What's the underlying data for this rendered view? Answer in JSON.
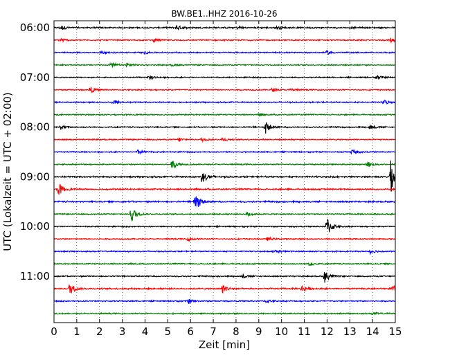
{
  "chart_data": {
    "type": "line",
    "title": "BW.BE1..HHZ 2016-10-26",
    "xlabel": "Zeit  [min]",
    "ylabel": "UTC (Lokalzeit = UTC + 02:00)",
    "xlim": [
      0,
      15
    ],
    "x_ticks": [
      "0",
      "1",
      "2",
      "3",
      "4",
      "5",
      "6",
      "7",
      "8",
      "9",
      "10",
      "11",
      "12",
      "13",
      "14",
      "15"
    ],
    "y_tick_labels": [
      "06:00",
      "07:00",
      "08:00",
      "09:00",
      "10:00",
      "11:00"
    ],
    "grid": "vertical dotted",
    "row_minutes": 15,
    "color_cycle": [
      "#000000",
      "#ff0000",
      "#0000ff",
      "#008000"
    ],
    "series": [
      {
        "start": "06:00",
        "color": "#000000",
        "noise": 0.1,
        "events": [
          {
            "t": 0.3,
            "amp": 0.35
          },
          {
            "t": 5.4,
            "amp": 0.35
          },
          {
            "t": 8.1,
            "amp": 0.2
          },
          {
            "t": 9.8,
            "amp": 0.2
          }
        ]
      },
      {
        "start": "06:15",
        "color": "#ff0000",
        "noise": 0.08,
        "events": [
          {
            "t": 0.3,
            "amp": 0.35
          },
          {
            "t": 4.4,
            "amp": 0.25
          },
          {
            "t": 14.8,
            "amp": 0.35
          }
        ]
      },
      {
        "start": "06:30",
        "color": "#0000ff",
        "noise": 0.08,
        "events": [
          {
            "t": 2.1,
            "amp": 0.25
          },
          {
            "t": 4.0,
            "amp": 0.2
          },
          {
            "t": 12.0,
            "amp": 0.3
          }
        ]
      },
      {
        "start": "06:45",
        "color": "#008000",
        "noise": 0.08,
        "events": [
          {
            "t": 2.5,
            "amp": 0.4
          },
          {
            "t": 3.2,
            "amp": 0.4
          },
          {
            "t": 5.2,
            "amp": 0.2
          }
        ]
      },
      {
        "start": "07:00",
        "color": "#000000",
        "noise": 0.08,
        "events": [
          {
            "t": 4.2,
            "amp": 0.35
          },
          {
            "t": 14.2,
            "amp": 0.4
          }
        ]
      },
      {
        "start": "07:15",
        "color": "#ff0000",
        "noise": 0.08,
        "events": [
          {
            "t": 1.6,
            "amp": 0.5
          },
          {
            "t": 9.6,
            "amp": 0.3
          },
          {
            "t": 10.4,
            "amp": 0.25
          }
        ]
      },
      {
        "start": "07:30",
        "color": "#0000ff",
        "noise": 0.08,
        "events": [
          {
            "t": 2.6,
            "amp": 0.45
          },
          {
            "t": 14.5,
            "amp": 0.4
          }
        ]
      },
      {
        "start": "07:45",
        "color": "#008000",
        "noise": 0.08,
        "events": [
          {
            "t": 9.0,
            "amp": 0.2
          }
        ]
      },
      {
        "start": "08:00",
        "color": "#000000",
        "noise": 0.08,
        "events": [
          {
            "t": 0.3,
            "amp": 0.35
          },
          {
            "t": 9.3,
            "amp": 1.0
          },
          {
            "t": 13.9,
            "amp": 0.4
          }
        ]
      },
      {
        "start": "08:15",
        "color": "#ff0000",
        "noise": 0.08,
        "events": [
          {
            "t": 5.5,
            "amp": 0.3
          },
          {
            "t": 6.5,
            "amp": 0.3
          },
          {
            "t": 7.4,
            "amp": 0.3
          }
        ]
      },
      {
        "start": "08:30",
        "color": "#0000ff",
        "noise": 0.08,
        "events": [
          {
            "t": 3.7,
            "amp": 0.35
          },
          {
            "t": 13.1,
            "amp": 0.4
          }
        ]
      },
      {
        "start": "08:45",
        "color": "#008000",
        "noise": 0.08,
        "events": [
          {
            "t": 5.2,
            "amp": 0.8
          },
          {
            "t": 13.8,
            "amp": 0.4
          }
        ]
      },
      {
        "start": "09:00",
        "color": "#000000",
        "noise": 0.1,
        "events": [
          {
            "t": 6.5,
            "amp": 1.1
          },
          {
            "t": 14.8,
            "amp": 2.6
          }
        ]
      },
      {
        "start": "09:15",
        "color": "#ff0000",
        "noise": 0.1,
        "events": [
          {
            "t": 0.2,
            "amp": 1.0
          }
        ]
      },
      {
        "start": "09:30",
        "color": "#0000ff",
        "noise": 0.1,
        "events": [
          {
            "t": 6.2,
            "amp": 1.8
          }
        ]
      },
      {
        "start": "09:45",
        "color": "#008000",
        "noise": 0.08,
        "events": [
          {
            "t": 3.4,
            "amp": 1.4
          },
          {
            "t": 8.5,
            "amp": 0.4
          }
        ]
      },
      {
        "start": "10:00",
        "color": "#000000",
        "noise": 0.08,
        "events": [
          {
            "t": 12.0,
            "amp": 1.7
          }
        ]
      },
      {
        "start": "10:15",
        "color": "#ff0000",
        "noise": 0.08,
        "events": [
          {
            "t": 5.9,
            "amp": 0.35
          },
          {
            "t": 9.4,
            "amp": 0.3
          }
        ]
      },
      {
        "start": "10:30",
        "color": "#0000ff",
        "noise": 0.08,
        "events": [
          {
            "t": 9.7,
            "amp": 0.35
          },
          {
            "t": 13.9,
            "amp": 0.35
          }
        ]
      },
      {
        "start": "10:45",
        "color": "#008000",
        "noise": 0.08,
        "events": [
          {
            "t": 11.2,
            "amp": 0.25
          }
        ]
      },
      {
        "start": "11:00",
        "color": "#000000",
        "noise": 0.08,
        "events": [
          {
            "t": 11.9,
            "amp": 1.0
          },
          {
            "t": 8.3,
            "amp": 0.25
          }
        ]
      },
      {
        "start": "11:15",
        "color": "#ff0000",
        "noise": 0.1,
        "events": [
          {
            "t": 0.7,
            "amp": 1.0
          },
          {
            "t": 7.4,
            "amp": 0.7
          },
          {
            "t": 10.9,
            "amp": 0.6
          },
          {
            "t": 14.9,
            "amp": 0.5
          }
        ]
      },
      {
        "start": "11:30",
        "color": "#0000ff",
        "noise": 0.08,
        "events": [
          {
            "t": 5.9,
            "amp": 0.35
          },
          {
            "t": 9.3,
            "amp": 0.3
          }
        ]
      },
      {
        "start": "11:45",
        "color": "#008000",
        "noise": 0.08,
        "events": [
          {
            "t": 14.0,
            "amp": 0.2
          }
        ]
      }
    ]
  }
}
